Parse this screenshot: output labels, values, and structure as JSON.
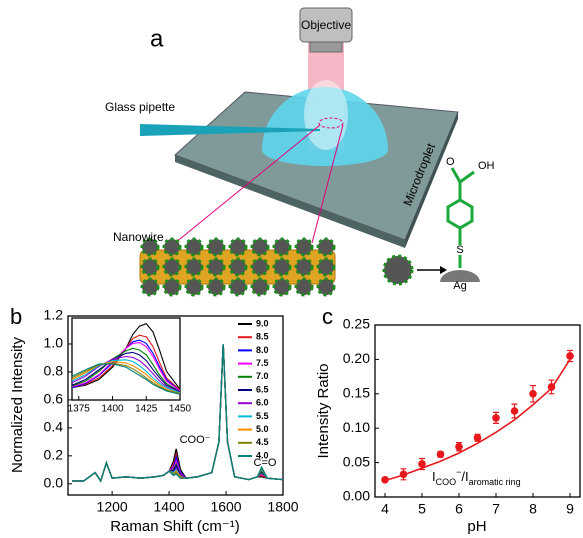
{
  "diagram": {
    "panel_label": "a",
    "objective": "Objective",
    "pipette": "Glass pipette",
    "droplet": "Microdroplet",
    "nanowire": "Nanowire",
    "hydroxyl": "OH",
    "oxygen": "O",
    "sulfur": "S",
    "silver": "Ag"
  },
  "chart_data": [
    {
      "type": "line",
      "panel_label": "b",
      "x_label": "Raman Shift (cm⁻¹)",
      "y_label": "Normalized Intensity",
      "annotations": [
        "COO⁻",
        "C=O"
      ],
      "xlim": [
        1045,
        1800
      ],
      "xticks": [
        1200,
        1400,
        1600,
        1800
      ],
      "ylim": [
        -0.08,
        1.2
      ],
      "yticks": [
        {
          "value": 0,
          "label": "0.0"
        },
        0.2,
        0.4,
        0.6,
        0.8,
        {
          "value": 1,
          "label": "1.0"
        },
        1.2
      ],
      "x": [
        1060,
        1100,
        1140,
        1160,
        1180,
        1200,
        1250,
        1300,
        1350,
        1380,
        1400,
        1415,
        1425,
        1440,
        1460,
        1500,
        1550,
        1575,
        1590,
        1605,
        1630,
        1680,
        1710,
        1725,
        1745,
        1800
      ],
      "series": [
        {
          "name": "9.0",
          "color": "#000000",
          "values": [
            0.02,
            0.02,
            0.08,
            0.02,
            0.15,
            0.04,
            0.05,
            0.04,
            0.05,
            0.06,
            0.09,
            0.16,
            0.25,
            0.1,
            0.04,
            0.05,
            0.08,
            0.3,
            1.0,
            0.3,
            0.05,
            0.03,
            0.05,
            0.05,
            0.04,
            0.03
          ]
        },
        {
          "name": "8.5",
          "color": "#e41a1c",
          "values": [
            0.02,
            0.02,
            0.08,
            0.02,
            0.15,
            0.04,
            0.05,
            0.04,
            0.05,
            0.06,
            0.09,
            0.14,
            0.21,
            0.08,
            0.04,
            0.05,
            0.08,
            0.3,
            1.0,
            0.3,
            0.05,
            0.03,
            0.05,
            0.06,
            0.04,
            0.03
          ]
        },
        {
          "name": "8.0",
          "color": "#0000ff",
          "values": [
            0.02,
            0.02,
            0.08,
            0.02,
            0.15,
            0.04,
            0.05,
            0.04,
            0.05,
            0.06,
            0.09,
            0.12,
            0.19,
            0.08,
            0.04,
            0.05,
            0.08,
            0.3,
            1.0,
            0.3,
            0.05,
            0.03,
            0.05,
            0.07,
            0.04,
            0.03
          ]
        },
        {
          "name": "7.5",
          "color": "#ff00ff",
          "values": [
            0.02,
            0.02,
            0.08,
            0.02,
            0.15,
            0.04,
            0.05,
            0.04,
            0.05,
            0.06,
            0.09,
            0.11,
            0.16,
            0.07,
            0.04,
            0.05,
            0.08,
            0.3,
            1.0,
            0.3,
            0.05,
            0.03,
            0.05,
            0.07,
            0.04,
            0.03
          ]
        },
        {
          "name": "7.0",
          "color": "#008000",
          "values": [
            0.02,
            0.02,
            0.08,
            0.02,
            0.15,
            0.04,
            0.05,
            0.04,
            0.05,
            0.06,
            0.09,
            0.1,
            0.14,
            0.06,
            0.04,
            0.05,
            0.08,
            0.3,
            1.0,
            0.3,
            0.05,
            0.03,
            0.05,
            0.08,
            0.04,
            0.03
          ]
        },
        {
          "name": "6.5",
          "color": "#000080",
          "values": [
            0.02,
            0.02,
            0.08,
            0.02,
            0.15,
            0.04,
            0.05,
            0.04,
            0.05,
            0.06,
            0.09,
            0.09,
            0.13,
            0.06,
            0.04,
            0.05,
            0.08,
            0.3,
            1.0,
            0.3,
            0.05,
            0.03,
            0.05,
            0.09,
            0.04,
            0.03
          ]
        },
        {
          "name": "6.0",
          "color": "#9400d3",
          "values": [
            0.02,
            0.02,
            0.08,
            0.02,
            0.15,
            0.04,
            0.05,
            0.04,
            0.05,
            0.06,
            0.09,
            0.08,
            0.11,
            0.05,
            0.04,
            0.05,
            0.08,
            0.3,
            1.0,
            0.3,
            0.05,
            0.03,
            0.05,
            0.1,
            0.04,
            0.03
          ]
        },
        {
          "name": "5.5",
          "color": "#00bcd4",
          "values": [
            0.02,
            0.02,
            0.08,
            0.02,
            0.15,
            0.04,
            0.05,
            0.04,
            0.05,
            0.06,
            0.09,
            0.08,
            0.1,
            0.05,
            0.04,
            0.05,
            0.08,
            0.3,
            1.0,
            0.3,
            0.05,
            0.03,
            0.05,
            0.1,
            0.04,
            0.03
          ]
        },
        {
          "name": "5.0",
          "color": "#ff8c00",
          "values": [
            0.02,
            0.02,
            0.08,
            0.02,
            0.15,
            0.04,
            0.05,
            0.04,
            0.05,
            0.06,
            0.09,
            0.07,
            0.09,
            0.05,
            0.04,
            0.05,
            0.08,
            0.3,
            1.0,
            0.3,
            0.05,
            0.03,
            0.05,
            0.11,
            0.04,
            0.03
          ]
        },
        {
          "name": "4.5",
          "color": "#808000",
          "values": [
            0.02,
            0.02,
            0.08,
            0.02,
            0.15,
            0.04,
            0.05,
            0.04,
            0.05,
            0.06,
            0.09,
            0.07,
            0.08,
            0.04,
            0.04,
            0.05,
            0.08,
            0.3,
            1.0,
            0.3,
            0.05,
            0.03,
            0.05,
            0.11,
            0.04,
            0.03
          ]
        },
        {
          "name": "4.0",
          "color": "#008080",
          "values": [
            0.02,
            0.02,
            0.08,
            0.02,
            0.15,
            0.04,
            0.05,
            0.04,
            0.05,
            0.06,
            0.09,
            0.06,
            0.07,
            0.04,
            0.04,
            0.05,
            0.08,
            0.3,
            1.0,
            0.3,
            0.05,
            0.03,
            0.05,
            0.12,
            0.04,
            0.03
          ]
        }
      ]
    },
    {
      "type": "line",
      "xlim": [
        1370,
        1450
      ],
      "xticks": [
        1375,
        1400,
        1425,
        1450
      ],
      "ylim": [
        0.15,
        1.15
      ],
      "x": [
        1370,
        1380,
        1390,
        1400,
        1410,
        1415,
        1420,
        1425,
        1430,
        1435,
        1440,
        1450
      ],
      "series": [
        {
          "color": "#000000",
          "values": [
            0.3,
            0.33,
            0.4,
            0.55,
            0.78,
            0.95,
            1.05,
            1.08,
            0.98,
            0.75,
            0.5,
            0.28
          ]
        },
        {
          "color": "#e41a1c",
          "values": [
            0.3,
            0.34,
            0.42,
            0.57,
            0.78,
            0.9,
            0.94,
            0.92,
            0.8,
            0.6,
            0.42,
            0.27
          ]
        },
        {
          "color": "#0000ff",
          "values": [
            0.3,
            0.35,
            0.45,
            0.6,
            0.78,
            0.86,
            0.88,
            0.84,
            0.72,
            0.55,
            0.4,
            0.26
          ]
        },
        {
          "color": "#ff00ff",
          "values": [
            0.31,
            0.36,
            0.46,
            0.62,
            0.78,
            0.84,
            0.85,
            0.8,
            0.68,
            0.52,
            0.38,
            0.26
          ]
        },
        {
          "color": "#008000",
          "values": [
            0.32,
            0.38,
            0.5,
            0.65,
            0.75,
            0.78,
            0.76,
            0.7,
            0.58,
            0.45,
            0.35,
            0.25
          ]
        },
        {
          "color": "#000080",
          "values": [
            0.33,
            0.4,
            0.52,
            0.64,
            0.72,
            0.73,
            0.7,
            0.63,
            0.52,
            0.42,
            0.33,
            0.25
          ]
        },
        {
          "color": "#9400d3",
          "values": [
            0.36,
            0.44,
            0.56,
            0.65,
            0.68,
            0.67,
            0.63,
            0.56,
            0.47,
            0.38,
            0.31,
            0.24
          ]
        },
        {
          "color": "#00bcd4",
          "values": [
            0.38,
            0.46,
            0.57,
            0.63,
            0.64,
            0.62,
            0.57,
            0.5,
            0.42,
            0.35,
            0.3,
            0.24
          ]
        },
        {
          "color": "#ff8c00",
          "values": [
            0.4,
            0.48,
            0.58,
            0.62,
            0.6,
            0.57,
            0.52,
            0.46,
            0.39,
            0.33,
            0.28,
            0.23
          ]
        },
        {
          "color": "#808000",
          "values": [
            0.42,
            0.5,
            0.58,
            0.6,
            0.57,
            0.53,
            0.48,
            0.42,
            0.36,
            0.31,
            0.27,
            0.23
          ]
        },
        {
          "color": "#008080",
          "values": [
            0.44,
            0.52,
            0.59,
            0.59,
            0.55,
            0.5,
            0.45,
            0.4,
            0.34,
            0.3,
            0.26,
            0.22
          ]
        }
      ]
    },
    {
      "type": "scatter",
      "panel_label": "c",
      "x_label": "pH",
      "y_label": "Intensity Ratio",
      "annotation": [
        {
          "text": "I"
        },
        {
          "text": "COO",
          "style": "sub"
        },
        {
          "text": "−",
          "style": "sup"
        },
        {
          "text": "/I"
        },
        {
          "text": "aromatic ring",
          "style": "sub"
        }
      ],
      "xlim": [
        3.73,
        9.27
      ],
      "xticks": [
        4,
        5,
        6,
        7,
        8,
        9
      ],
      "ylim": [
        0,
        0.25
      ],
      "yticks": [
        {
          "value": 0,
          "label": "0.00"
        },
        {
          "value": 0.05,
          "label": "0.05"
        },
        {
          "value": 0.1,
          "label": "0.10"
        },
        {
          "value": 0.15,
          "label": "0.15"
        },
        {
          "value": 0.2,
          "label": "0.20"
        },
        {
          "value": 0.25,
          "label": "0.25"
        }
      ],
      "x": [
        4,
        4.5,
        5,
        5.5,
        6,
        6.5,
        7,
        7.5,
        8,
        8.5,
        9
      ],
      "series": [
        {
          "color": "#e8191d",
          "values": [
            0.025,
            0.033,
            0.048,
            0.062,
            0.073,
            0.086,
            0.115,
            0.125,
            0.15,
            0.16,
            0.205
          ],
          "errors": [
            0.003,
            0.008,
            0.008,
            0.004,
            0.006,
            0.005,
            0.008,
            0.01,
            0.012,
            0.01,
            0.008
          ]
        }
      ],
      "fit": {
        "color": "#e8191d",
        "values": [
          0.024,
          0.032,
          0.042,
          0.052,
          0.064,
          0.078,
          0.094,
          0.112,
          0.134,
          0.158,
          0.2
        ]
      }
    }
  ]
}
